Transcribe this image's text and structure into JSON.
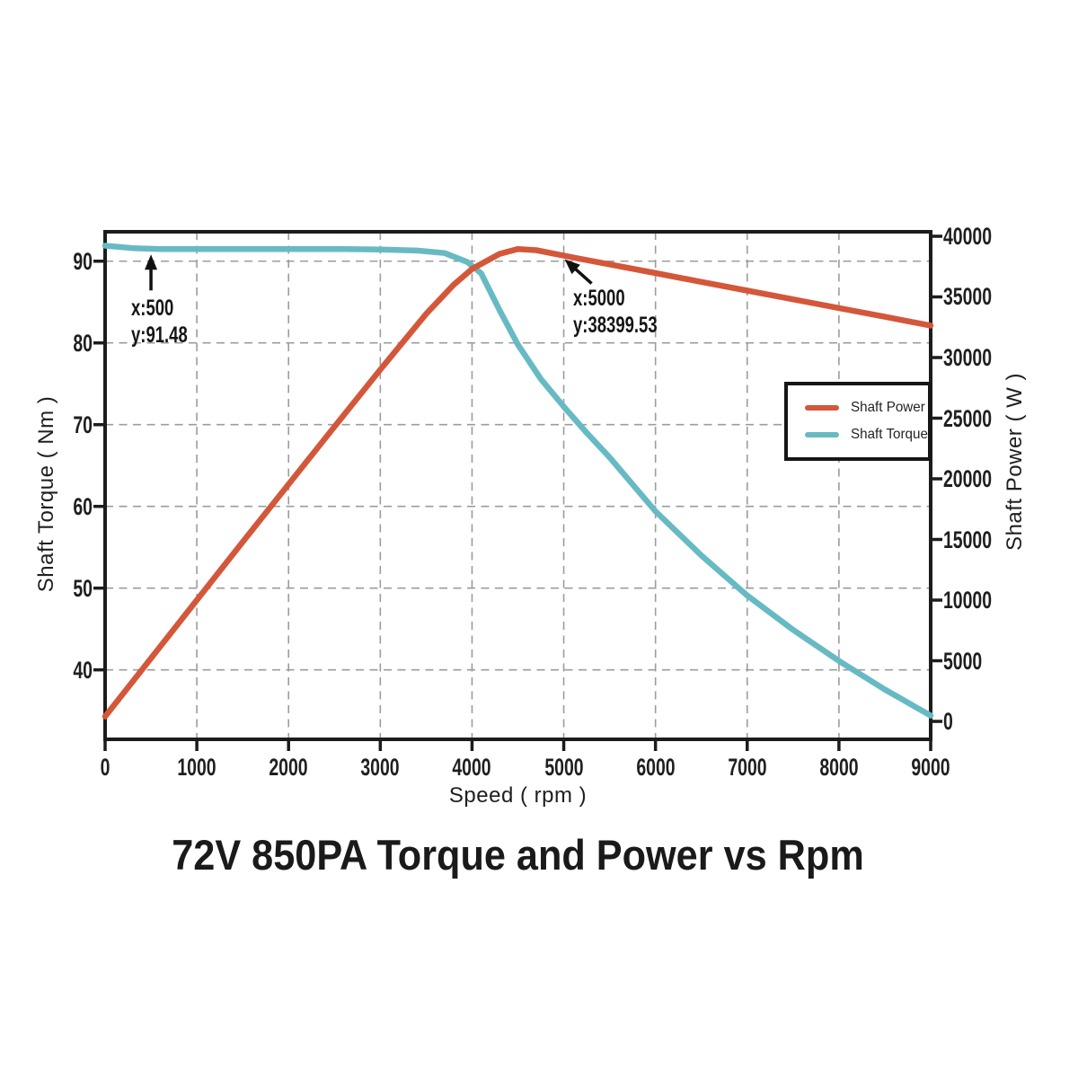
{
  "chart_data": {
    "type": "line",
    "title": "72V 850PA Torque and Power vs Rpm",
    "xlabel": "Speed ( rpm )",
    "ylabel_left": "Shaft Torque ( Nm )",
    "ylabel_right": "Shaft Power ( W )",
    "xlim": [
      0,
      9000
    ],
    "ylim_left": [
      31.5,
      93.6
    ],
    "ylim_right": [
      -1480,
      40370
    ],
    "x_ticks": [
      0,
      1000,
      2000,
      3000,
      4000,
      5000,
      6000,
      7000,
      8000,
      9000
    ],
    "y_ticks_left": [
      40,
      50,
      60,
      70,
      80,
      90
    ],
    "y_ticks_right": [
      0,
      5000,
      10000,
      15000,
      20000,
      25000,
      30000,
      35000,
      40000
    ],
    "grid": "dashed",
    "grid_color": "#9c9c9c",
    "frame_color": "#1c1c1c",
    "legend_position": "right-center",
    "series": [
      {
        "name": "Shaft Power",
        "axis": "right",
        "color": "#d4573a",
        "points": [
          [
            0,
            400
          ],
          [
            500,
            5200
          ],
          [
            1000,
            10000
          ],
          [
            1500,
            14800
          ],
          [
            2000,
            19550
          ],
          [
            2500,
            24300
          ],
          [
            3000,
            29000
          ],
          [
            3500,
            33600
          ],
          [
            3800,
            36000
          ],
          [
            4000,
            37300
          ],
          [
            4300,
            38550
          ],
          [
            4500,
            38950
          ],
          [
            4700,
            38850
          ],
          [
            5000,
            38399.53
          ],
          [
            5500,
            37680
          ],
          [
            6000,
            36960
          ],
          [
            6500,
            36240
          ],
          [
            7000,
            35520
          ],
          [
            7500,
            34800
          ],
          [
            8000,
            34080
          ],
          [
            8500,
            33360
          ],
          [
            9000,
            32640
          ]
        ]
      },
      {
        "name": "Shaft Torque",
        "axis": "left",
        "color": "#67bac3",
        "points": [
          [
            0,
            91.9
          ],
          [
            300,
            91.6
          ],
          [
            600,
            91.48
          ],
          [
            1000,
            91.48
          ],
          [
            1400,
            91.48
          ],
          [
            1800,
            91.48
          ],
          [
            2200,
            91.48
          ],
          [
            2600,
            91.48
          ],
          [
            3000,
            91.42
          ],
          [
            3400,
            91.3
          ],
          [
            3700,
            91.0
          ],
          [
            3950,
            89.9
          ],
          [
            4100,
            88.5
          ],
          [
            4300,
            84.0
          ],
          [
            4500,
            79.8
          ],
          [
            4750,
            75.6
          ],
          [
            5000,
            72.2
          ],
          [
            5250,
            69.0
          ],
          [
            5500,
            66.0
          ],
          [
            6000,
            59.4
          ],
          [
            6500,
            54.0
          ],
          [
            7000,
            49.1
          ],
          [
            7500,
            44.9
          ],
          [
            8000,
            41.1
          ],
          [
            8500,
            37.6
          ],
          [
            9000,
            34.4
          ]
        ]
      }
    ],
    "annotations": [
      {
        "lines": [
          "x:500",
          "y:91.48"
        ],
        "x": 500,
        "y": 91.48,
        "axis": "left"
      },
      {
        "lines": [
          "x:5000",
          "y:38399.53"
        ],
        "x": 5000,
        "y": 38399.53,
        "axis": "right"
      }
    ]
  }
}
